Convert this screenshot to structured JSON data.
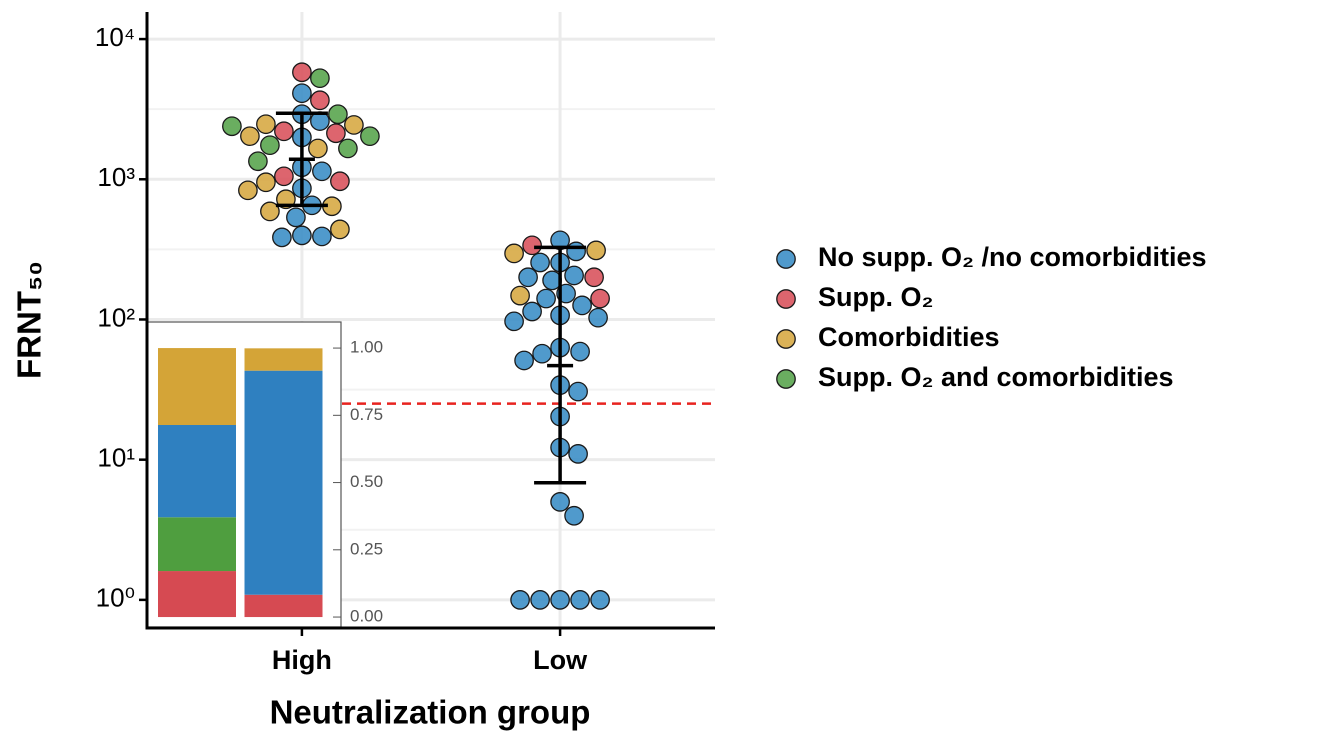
{
  "chart_data": {
    "type": "scatter",
    "x_label": "Neutralization group",
    "y_label": "FRNT₅₀",
    "categories": [
      "High",
      "Low"
    ],
    "log_y": true,
    "grid": true,
    "legend": "right",
    "ylim": [
      0.63,
      15600
    ],
    "yticks": [
      {
        "value": 1,
        "label": "10⁰"
      },
      {
        "value": 10,
        "label": "10¹"
      },
      {
        "value": 100,
        "label": "10²"
      },
      {
        "value": 1000,
        "label": "10³"
      },
      {
        "value": 10000,
        "label": "10⁴"
      }
    ],
    "series": [
      {
        "name": "No supp. O₂ /no comorbidities",
        "color": "#3d8fc7",
        "categories": [
          "High",
          "High",
          "High",
          "High",
          "High",
          "High",
          "High",
          "High",
          "High",
          "High",
          "High",
          "High",
          "Low",
          "Low",
          "Low",
          "Low",
          "Low",
          "Low",
          "Low",
          "Low",
          "Low",
          "Low",
          "Low",
          "Low",
          "Low",
          "Low",
          "Low",
          "Low",
          "Low",
          "Low",
          "Low",
          "Low",
          "Low",
          "Low",
          "Low",
          "Low",
          "Low",
          "Low",
          "Low",
          "Low",
          "Low",
          "Low"
        ],
        "values": [
          4110,
          2910,
          2600,
          1990,
          1218,
          1140,
          862,
          652,
          535,
          398,
          391,
          385,
          367,
          306,
          255,
          255,
          206,
          200,
          190,
          153,
          141,
          126,
          114,
          107,
          103,
          97,
          63,
          59,
          57,
          51,
          34,
          30.6,
          20.3,
          12.2,
          11,
          5,
          3.98,
          1,
          1,
          1,
          1,
          1
        ]
      },
      {
        "name": "Supp. O₂",
        "color": "#d9545e",
        "categories": [
          "High",
          "High",
          "High",
          "High",
          "High",
          "High",
          "Low",
          "Low",
          "Low"
        ],
        "values": [
          5800,
          3660,
          2200,
          2130,
          1050,
          968,
          338,
          200,
          141
        ]
      },
      {
        "name": "Comorbidities",
        "color": "#d7aa45",
        "categories": [
          "High",
          "High",
          "High",
          "High",
          "High",
          "High",
          "High",
          "High",
          "High",
          "High",
          "Low",
          "Low",
          "Low"
        ],
        "values": [
          2470,
          2440,
          2030,
          1660,
          952,
          834,
          720,
          642,
          590,
          439,
          311,
          296,
          148
        ]
      },
      {
        "name": "Supp. O₂ and comorbidities",
        "color": "#5aa54f",
        "categories": [
          "High",
          "High",
          "High",
          "High",
          "High",
          "High",
          "High"
        ],
        "values": [
          5260,
          2910,
          2390,
          2030,
          1750,
          1660,
          1345
        ]
      }
    ],
    "error_bars": [
      {
        "category": "High",
        "center": 1390,
        "low": 652,
        "high": 2960
      },
      {
        "category": "Low",
        "center": 46.9,
        "low": 6.85,
        "high": 327
      }
    ],
    "reference_line": {
      "value": 25.1,
      "color": "#e8231f"
    },
    "inset": {
      "type": "bar",
      "stacked": true,
      "ylim": [
        -0.037,
        1.03
      ],
      "yticks": [
        {
          "value": 0,
          "label": "0.00"
        },
        {
          "value": 0.25,
          "label": "0.25"
        },
        {
          "value": 0.5,
          "label": "0.50"
        },
        {
          "value": 0.75,
          "label": "0.75"
        },
        {
          "value": 1,
          "label": "1.00"
        }
      ],
      "series": [
        {
          "color": "#d64a52",
          "values": [
            0.171,
            0.083
          ]
        },
        {
          "color": "#4f9e3f",
          "values": [
            0.2,
            0
          ]
        },
        {
          "color": "#2f80c0",
          "values": [
            0.343,
            0.833
          ]
        },
        {
          "color": "#d4a437",
          "values": [
            0.286,
            0.083
          ]
        }
      ]
    }
  }
}
